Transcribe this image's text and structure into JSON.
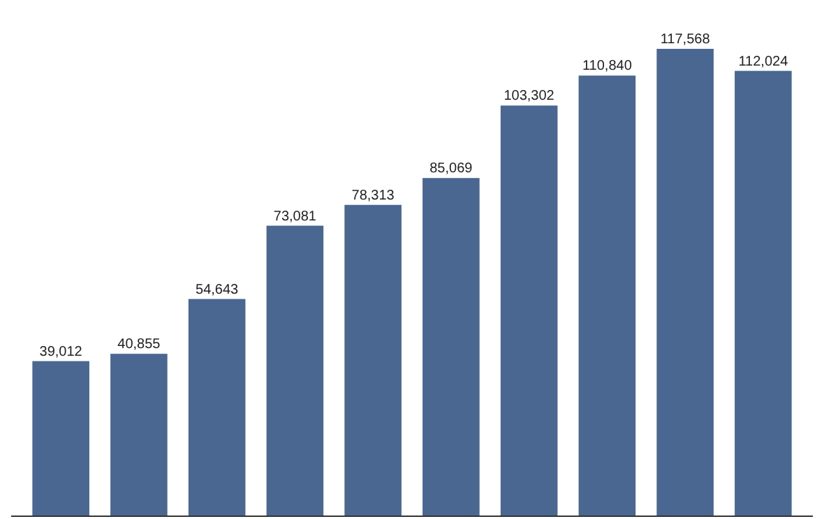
{
  "chart_data": {
    "type": "bar",
    "categories": [
      null,
      null,
      null,
      null,
      null,
      null,
      null,
      null,
      null,
      null
    ],
    "values": [
      39012,
      40855,
      54643,
      73081,
      78313,
      85069,
      103302,
      110840,
      117568,
      112024
    ],
    "value_labels": [
      "39,012",
      "40,855",
      "54,643",
      "73,081",
      "78,313",
      "85,069",
      "103,302",
      "110,840",
      "117,568",
      "112,024"
    ],
    "color": "#4a6791"
  }
}
